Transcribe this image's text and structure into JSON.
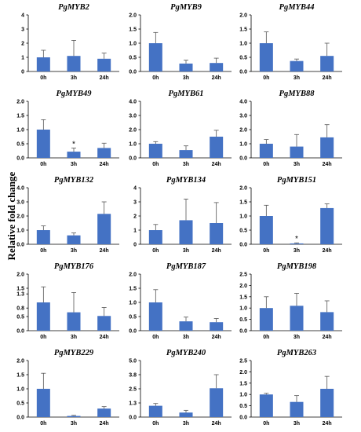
{
  "figure": {
    "ylabel": "Relative fold change",
    "colors": {
      "bar": "#4472c4",
      "error": "#555555",
      "axis": "#000000"
    }
  },
  "chart_data": [
    {
      "type": "bar",
      "title": "PgMYB2",
      "categories": [
        "0h",
        "3h",
        "24h"
      ],
      "values": [
        1.0,
        1.1,
        0.9
      ],
      "errors": [
        0.5,
        1.1,
        0.4
      ],
      "ylim": [
        0,
        4
      ],
      "yticks": [
        "0",
        "1",
        "2",
        "3",
        "4"
      ],
      "ytick_values": [
        0,
        1,
        2,
        3,
        4
      ],
      "significance": [
        "",
        "",
        ""
      ]
    },
    {
      "type": "bar",
      "title": "PgMYB9",
      "categories": [
        "0h",
        "3h",
        "24h"
      ],
      "values": [
        1.0,
        0.28,
        0.3
      ],
      "errors": [
        0.38,
        0.12,
        0.17
      ],
      "ylim": [
        0,
        2
      ],
      "yticks": [
        "0.0",
        "0.5",
        "1.0",
        "1.5",
        "2.0"
      ],
      "ytick_values": [
        0,
        0.5,
        1,
        1.5,
        2
      ],
      "significance": [
        "",
        "",
        ""
      ]
    },
    {
      "type": "bar",
      "title": "PgMYB44",
      "categories": [
        "0h",
        "3h",
        "24h"
      ],
      "values": [
        1.0,
        0.37,
        0.55
      ],
      "errors": [
        0.4,
        0.07,
        0.45
      ],
      "ylim": [
        0,
        2
      ],
      "yticks": [
        "0.0",
        "0.5",
        "1.0",
        "1.5",
        "2.0"
      ],
      "ytick_values": [
        0,
        0.5,
        1,
        1.5,
        2
      ],
      "significance": [
        "",
        "",
        ""
      ]
    },
    {
      "type": "bar",
      "title": "PgMYB49",
      "categories": [
        "0h",
        "3h",
        "24h"
      ],
      "values": [
        1.0,
        0.22,
        0.35
      ],
      "errors": [
        0.35,
        0.13,
        0.17
      ],
      "ylim": [
        0,
        2
      ],
      "yticks": [
        "0.0",
        "0.5",
        "1.0",
        "1.5",
        "2.0"
      ],
      "ytick_values": [
        0,
        0.5,
        1,
        1.5,
        2
      ],
      "significance": [
        "",
        "*",
        ""
      ]
    },
    {
      "type": "bar",
      "title": "PgMYB61",
      "categories": [
        "0h",
        "3h",
        "24h"
      ],
      "values": [
        1.0,
        0.55,
        1.5
      ],
      "errors": [
        0.15,
        0.3,
        0.45
      ],
      "ylim": [
        0,
        4
      ],
      "yticks": [
        "0.0",
        "1.0",
        "2.0",
        "3.0",
        "4.0"
      ],
      "ytick_values": [
        0,
        1,
        2,
        3,
        4
      ],
      "significance": [
        "",
        "",
        ""
      ]
    },
    {
      "type": "bar",
      "title": "PgMYB88",
      "categories": [
        "0h",
        "3h",
        "24h"
      ],
      "values": [
        1.0,
        0.8,
        1.45
      ],
      "errors": [
        0.3,
        0.85,
        0.9
      ],
      "ylim": [
        0,
        4
      ],
      "yticks": [
        "0.0",
        "1.0",
        "2.0",
        "3.0",
        "4.0"
      ],
      "ytick_values": [
        0,
        1,
        2,
        3,
        4
      ],
      "significance": [
        "",
        "",
        ""
      ]
    },
    {
      "type": "bar",
      "title": "PgMYB132",
      "categories": [
        "0h",
        "3h",
        "24h"
      ],
      "values": [
        1.0,
        0.63,
        2.15
      ],
      "errors": [
        0.3,
        0.17,
        0.85
      ],
      "ylim": [
        0,
        4
      ],
      "yticks": [
        "0.0",
        "1.0",
        "2.0",
        "3.0",
        "4.0"
      ],
      "ytick_values": [
        0,
        1,
        2,
        3,
        4
      ],
      "significance": [
        "",
        "",
        ""
      ]
    },
    {
      "type": "bar",
      "title": "PgMYB134",
      "categories": [
        "0h",
        "3h",
        "24h"
      ],
      "values": [
        1.0,
        1.7,
        1.5
      ],
      "errors": [
        0.4,
        1.5,
        1.45
      ],
      "ylim": [
        0,
        4
      ],
      "yticks": [
        "0",
        "1",
        "2",
        "3",
        "4"
      ],
      "ytick_values": [
        0,
        1,
        2,
        3,
        4
      ],
      "significance": [
        "",
        "",
        ""
      ]
    },
    {
      "type": "bar",
      "title": "PgMYB151",
      "categories": [
        "0h",
        "3h",
        "24h"
      ],
      "values": [
        1.0,
        0.03,
        1.28
      ],
      "errors": [
        0.38,
        0.02,
        0.15
      ],
      "ylim": [
        0,
        2
      ],
      "yticks": [
        "0.0",
        "0.5",
        "1.0",
        "1.5",
        "2.0"
      ],
      "ytick_values": [
        0,
        0.5,
        1,
        1.5,
        2
      ],
      "significance": [
        "",
        "*",
        ""
      ]
    },
    {
      "type": "bar",
      "title": "PgMYB176",
      "categories": [
        "0h",
        "3h",
        "24h"
      ],
      "values": [
        1.0,
        0.65,
        0.52
      ],
      "errors": [
        0.55,
        0.7,
        0.3
      ],
      "ylim": [
        0,
        2
      ],
      "yticks": [
        "0.0",
        "0.5",
        "0.8",
        "1.3",
        "1.5",
        "2.0"
      ],
      "ytick_values": [
        0,
        0.5,
        0.8,
        1.3,
        1.5,
        2
      ],
      "significance": [
        "",
        "",
        ""
      ]
    },
    {
      "type": "bar",
      "title": "PgMYB187",
      "categories": [
        "0h",
        "3h",
        "24h"
      ],
      "values": [
        1.0,
        0.33,
        0.3
      ],
      "errors": [
        0.45,
        0.15,
        0.13
      ],
      "ylim": [
        0,
        2
      ],
      "yticks": [
        "0.0",
        "0.5",
        "1.0",
        "1.5",
        "2.0"
      ],
      "ytick_values": [
        0,
        0.5,
        1,
        1.5,
        2
      ],
      "significance": [
        "",
        "",
        ""
      ]
    },
    {
      "type": "bar",
      "title": "PgMYB198",
      "categories": [
        "0h",
        "3h",
        "24h"
      ],
      "values": [
        1.0,
        1.1,
        0.82
      ],
      "errors": [
        0.5,
        0.55,
        0.5
      ],
      "ylim": [
        0,
        2.5
      ],
      "yticks": [
        "0.0",
        "0.5",
        "1.0",
        "1.5",
        "2.0",
        "2.5"
      ],
      "ytick_values": [
        0,
        0.5,
        1,
        1.5,
        2,
        2.5
      ],
      "significance": [
        "",
        "",
        ""
      ]
    },
    {
      "type": "bar",
      "title": "PgMYB229",
      "categories": [
        "0h",
        "3h",
        "24h"
      ],
      "values": [
        1.0,
        0.04,
        0.3
      ],
      "errors": [
        0.55,
        0.02,
        0.07
      ],
      "ylim": [
        0,
        2
      ],
      "yticks": [
        "0.0",
        "0.5",
        "1.0",
        "1.5",
        "2.0"
      ],
      "ytick_values": [
        0,
        0.5,
        1,
        1.5,
        2
      ],
      "significance": [
        "",
        "",
        ""
      ]
    },
    {
      "type": "bar",
      "title": "PgMYB240",
      "categories": [
        "0h",
        "3h",
        "24h"
      ],
      "values": [
        1.0,
        0.4,
        2.55
      ],
      "errors": [
        0.2,
        0.2,
        1.2
      ],
      "ylim": [
        0,
        5
      ],
      "yticks": [
        "0.0",
        "1.3",
        "2.5",
        "3.8",
        "5.0"
      ],
      "ytick_values": [
        0,
        1.25,
        2.5,
        3.75,
        5
      ],
      "significance": [
        "",
        "",
        ""
      ]
    },
    {
      "type": "bar",
      "title": "PgMYB263",
      "categories": [
        "0h",
        "3h",
        "24h"
      ],
      "values": [
        1.0,
        0.67,
        1.25
      ],
      "errors": [
        0.05,
        0.28,
        0.55
      ],
      "ylim": [
        0,
        2.5
      ],
      "yticks": [
        "0.0",
        "0.5",
        "1.0",
        "1.5",
        "2.0",
        "2.5"
      ],
      "ytick_values": [
        0,
        0.5,
        1,
        1.5,
        2,
        2.5
      ],
      "significance": [
        "",
        "",
        ""
      ]
    }
  ]
}
